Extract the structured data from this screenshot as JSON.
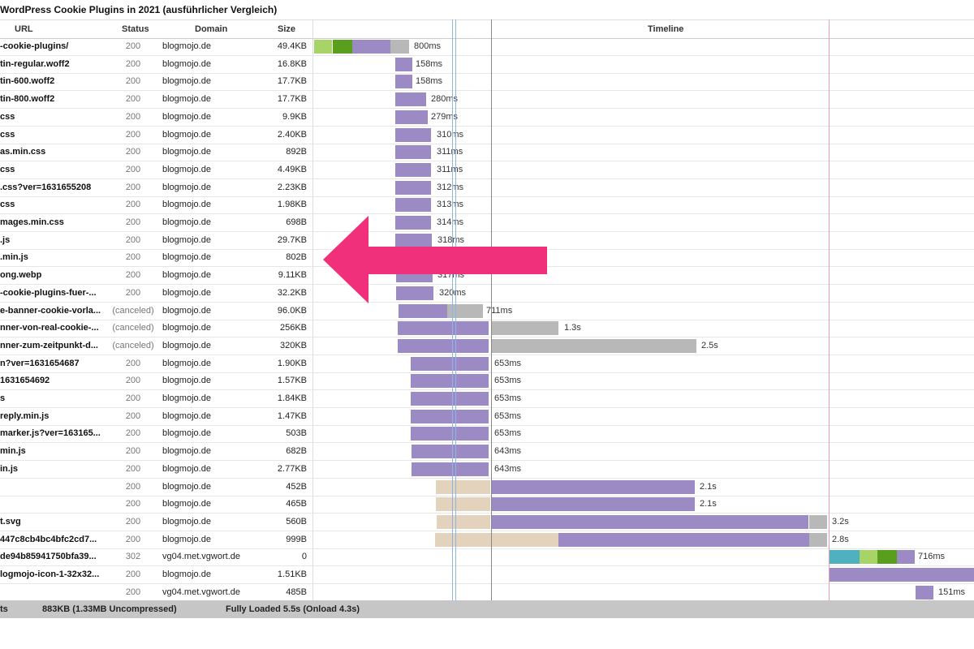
{
  "title": "WordPress Cookie Plugins in 2021 (ausführlicher Vergleich)",
  "columns": {
    "url": "URL",
    "status": "Status",
    "domain": "Domain",
    "size": "Size",
    "timeline": "Timeline"
  },
  "colors": {
    "purple": "#9b8ac4",
    "gray": "#b8b8b8",
    "tan": "#e3d3bd",
    "green_light": "#a6d466",
    "green_dark": "#5a9e1e",
    "teal": "#4fb0bf",
    "arrow": "#f0307a"
  },
  "rows": [
    {
      "url": "-cookie-plugins/",
      "status": "200",
      "domain": "blogmojo.de",
      "size": "49.4KB",
      "duration": "800ms"
    },
    {
      "url": "tin-regular.woff2",
      "status": "200",
      "domain": "blogmojo.de",
      "size": "16.8KB",
      "duration": "158ms"
    },
    {
      "url": "tin-600.woff2",
      "status": "200",
      "domain": "blogmojo.de",
      "size": "17.7KB",
      "duration": "158ms"
    },
    {
      "url": "tin-800.woff2",
      "status": "200",
      "domain": "blogmojo.de",
      "size": "17.7KB",
      "duration": "280ms"
    },
    {
      "url": "css",
      "status": "200",
      "domain": "blogmojo.de",
      "size": "9.9KB",
      "duration": "279ms"
    },
    {
      "url": "css",
      "status": "200",
      "domain": "blogmojo.de",
      "size": "2.40KB",
      "duration": "310ms"
    },
    {
      "url": "as.min.css",
      "status": "200",
      "domain": "blogmojo.de",
      "size": "892B",
      "duration": "311ms"
    },
    {
      "url": "css",
      "status": "200",
      "domain": "blogmojo.de",
      "size": "4.49KB",
      "duration": "311ms"
    },
    {
      "url": ".css?ver=1631655208",
      "status": "200",
      "domain": "blogmojo.de",
      "size": "2.23KB",
      "duration": "312ms"
    },
    {
      "url": "css",
      "status": "200",
      "domain": "blogmojo.de",
      "size": "1.98KB",
      "duration": "313ms"
    },
    {
      "url": "mages.min.css",
      "status": "200",
      "domain": "blogmojo.de",
      "size": "698B",
      "duration": "314ms"
    },
    {
      "url": ".js",
      "status": "200",
      "domain": "blogmojo.de",
      "size": "29.7KB",
      "duration": "318ms"
    },
    {
      "url": ".min.js",
      "status": "200",
      "domain": "blogmojo.de",
      "size": "802B",
      "duration": ""
    },
    {
      "url": "ong.webp",
      "status": "200",
      "domain": "blogmojo.de",
      "size": "9.11KB",
      "duration": "317ms"
    },
    {
      "url": "-cookie-plugins-fuer-...",
      "status": "200",
      "domain": "blogmojo.de",
      "size": "32.2KB",
      "duration": "320ms"
    },
    {
      "url": "e-banner-cookie-vorla...",
      "status": "(canceled)",
      "domain": "blogmojo.de",
      "size": "96.0KB",
      "duration": "711ms"
    },
    {
      "url": "nner-von-real-cookie-...",
      "status": "(canceled)",
      "domain": "blogmojo.de",
      "size": "256KB",
      "duration": "1.3s"
    },
    {
      "url": "nner-zum-zeitpunkt-d...",
      "status": "(canceled)",
      "domain": "blogmojo.de",
      "size": "320KB",
      "duration": "2.5s"
    },
    {
      "url": "n?ver=1631654687",
      "status": "200",
      "domain": "blogmojo.de",
      "size": "1.90KB",
      "duration": "653ms"
    },
    {
      "url": "1631654692",
      "status": "200",
      "domain": "blogmojo.de",
      "size": "1.57KB",
      "duration": "653ms"
    },
    {
      "url": "s",
      "status": "200",
      "domain": "blogmojo.de",
      "size": "1.84KB",
      "duration": "653ms"
    },
    {
      "url": "reply.min.js",
      "status": "200",
      "domain": "blogmojo.de",
      "size": "1.47KB",
      "duration": "653ms"
    },
    {
      "url": "marker.js?ver=163165...",
      "status": "200",
      "domain": "blogmojo.de",
      "size": "503B",
      "duration": "653ms"
    },
    {
      "url": "min.js",
      "status": "200",
      "domain": "blogmojo.de",
      "size": "682B",
      "duration": "643ms"
    },
    {
      "url": "in.js",
      "status": "200",
      "domain": "blogmojo.de",
      "size": "2.77KB",
      "duration": "643ms"
    },
    {
      "url": "",
      "status": "200",
      "domain": "blogmojo.de",
      "size": "452B",
      "duration": "2.1s"
    },
    {
      "url": "",
      "status": "200",
      "domain": "blogmojo.de",
      "size": "465B",
      "duration": "2.1s"
    },
    {
      "url": "t.svg",
      "status": "200",
      "domain": "blogmojo.de",
      "size": "560B",
      "duration": "3.2s"
    },
    {
      "url": "447c8cb4bc4bfc2cd7...",
      "status": "200",
      "domain": "blogmojo.de",
      "size": "999B",
      "duration": "2.8s"
    },
    {
      "url": "de94b85941750bfa39...",
      "status": "302",
      "domain": "vg04.met.vgwort.de",
      "size": "0",
      "duration": "716ms"
    },
    {
      "url": "logmojo-icon-1-32x32...",
      "status": "200",
      "domain": "blogmojo.de",
      "size": "1.51KB",
      "duration": ""
    },
    {
      "url": "",
      "status": "200",
      "domain": "vg04.met.vgwort.de",
      "size": "485B",
      "duration": "151ms"
    }
  ],
  "footer": {
    "requests": "ts",
    "transferred": "883KB  (1.33MB Uncompressed)",
    "loaded": "Fully Loaded 5.5s  (Onload 4.3s)"
  }
}
